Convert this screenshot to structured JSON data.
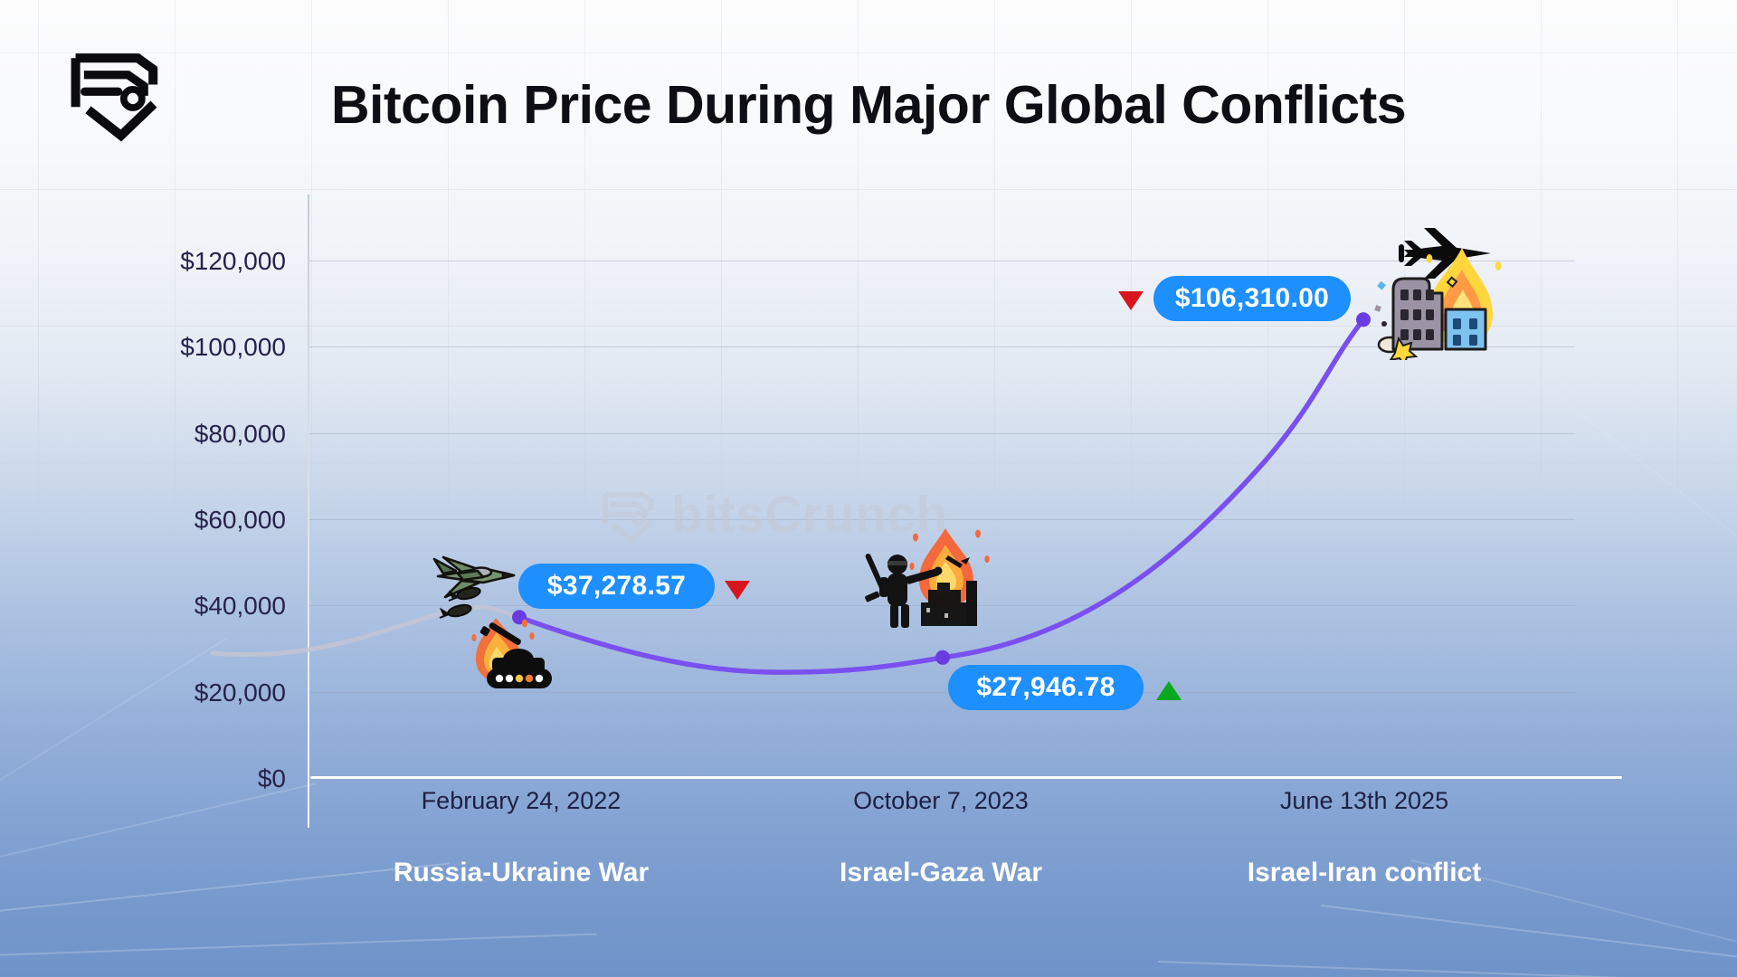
{
  "header": {
    "title": "Bitcoin Price During Major Global Conflicts"
  },
  "brand": {
    "logo": "bitscrunch-shield-logo"
  },
  "watermark": {
    "text": "bitsCrunch",
    "icon": "bitscrunch-shield-icon"
  },
  "yaxis": {
    "labels": [
      "$120,000",
      "$100,000",
      "$80,000",
      "$60,000",
      "$40,000",
      "$20,000",
      "$0"
    ]
  },
  "points": [
    {
      "date": "February 24, 2022",
      "event": "Russia-Ukraine War",
      "price_label": "$37,278.57",
      "value": 37278.57,
      "direction": "down",
      "icons": [
        "fighter-jet-dropping-bombs",
        "burning-tank"
      ]
    },
    {
      "date": "October 7, 2023",
      "event": "Israel-Gaza War",
      "price_label": "$27,946.78",
      "value": 27946.78,
      "direction": "up",
      "icons": [
        "soldier-burning-city"
      ]
    },
    {
      "date": "June 13th 2025",
      "event": "Israel-Iran conflict",
      "price_label": "$106,310.00",
      "value": 106310.0,
      "direction": "down",
      "icons": [
        "jet-over-burning-buildings"
      ]
    }
  ],
  "colors": {
    "pill_blue": "#1e8ffe",
    "line_purple": "#7a4ff0",
    "pre_line_gray": "#c3c4d4",
    "down_red": "#d8151c",
    "up_green": "#0aa81e",
    "axis_white": "#ffffff",
    "label_navy": "#1d2044"
  },
  "chart_data": {
    "type": "line",
    "title": "Bitcoin Price During Major Global Conflicts",
    "x": [
      "February 24, 2022",
      "October 7, 2023",
      "June 13th 2025"
    ],
    "events": [
      "Russia-Ukraine War",
      "Israel-Gaza War",
      "Israel-Iran conflict"
    ],
    "values": [
      37278.57,
      27946.78,
      106310.0
    ],
    "value_labels": [
      "$37,278.57",
      "$27,946.78",
      "$106,310.00"
    ],
    "change_direction": [
      "down",
      "up",
      "down"
    ],
    "ylabel": "",
    "xlabel": "",
    "ylim": [
      0,
      120000
    ],
    "ytick_step": 20000,
    "grid": "horizontal",
    "legend": "none",
    "pre_event_segment": "gray line before first event, purple after"
  }
}
